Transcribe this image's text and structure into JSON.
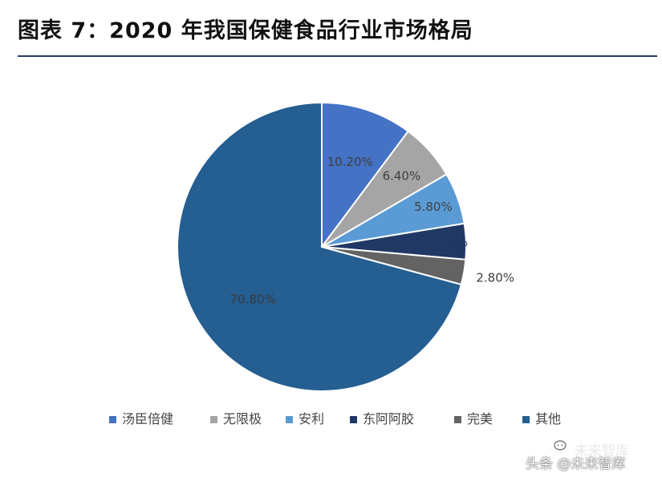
{
  "title": "图表 7：2020 年我国保健食品行业市场格局",
  "watermark": {
    "line1": "未来智库",
    "line2": "头条 @未来智库"
  },
  "chart_data": {
    "type": "pie",
    "title": "图表 7：2020 年我国保健食品行业市场格局",
    "start_angle_deg": 0,
    "direction": "clockwise",
    "legend_position": "bottom",
    "slices": [
      {
        "name": "汤臣倍健",
        "value": 10.2,
        "label": "10.20%",
        "color": "#4472c4",
        "label_color": "#404040"
      },
      {
        "name": "无限极",
        "value": 6.4,
        "label": "6.40%",
        "color": "#a5a5a5",
        "label_color": "#404040"
      },
      {
        "name": "安利",
        "value": 5.8,
        "label": "5.80%",
        "color": "#5b9bd5",
        "label_color": "#404040"
      },
      {
        "name": "东阿阿胶",
        "value": 4.0,
        "label": "4.00%",
        "color": "#203864",
        "label_color": "#1f3864"
      },
      {
        "name": "完美",
        "value": 2.8,
        "label": "2.80%",
        "color": "#636363",
        "label_color": "#404040"
      },
      {
        "name": "其他",
        "value": 70.8,
        "label": "70.80%",
        "color": "#255e91",
        "label_color": "#3a3a3a"
      }
    ]
  }
}
